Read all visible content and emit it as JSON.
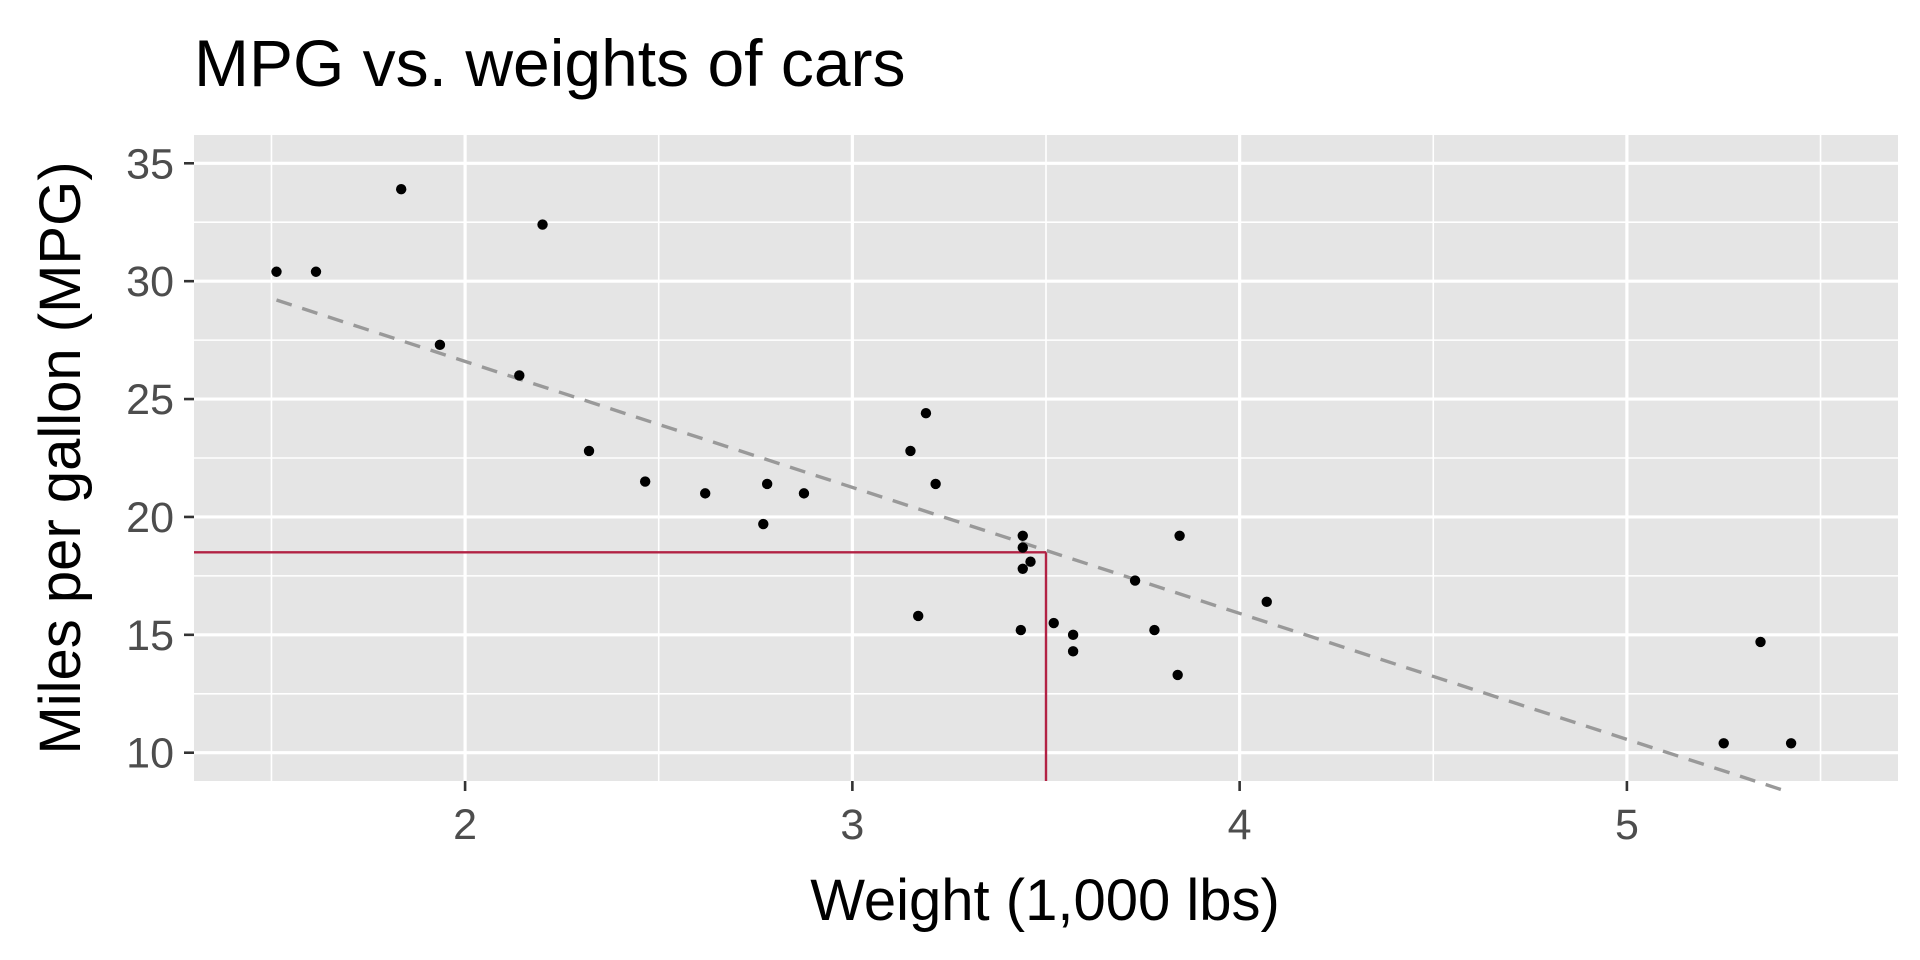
{
  "chart_data": {
    "type": "scatter",
    "title": "MPG vs. weights of cars",
    "xlabel": "Weight (1,000 lbs)",
    "ylabel": "Miles per gallon (MPG)",
    "xlim": [
      1.3,
      5.7
    ],
    "ylim": [
      8.8,
      36.2
    ],
    "x_ticks": [
      2,
      3,
      4,
      5
    ],
    "x_tick_labels": [
      "2",
      "3",
      "4",
      "5"
    ],
    "y_ticks": [
      10,
      15,
      20,
      25,
      30,
      35
    ],
    "y_tick_labels": [
      "10",
      "15",
      "20",
      "25",
      "30",
      "35"
    ],
    "grid": true,
    "background_color": "#e5e5e5",
    "points": [
      {
        "x": 2.62,
        "y": 21.0
      },
      {
        "x": 2.875,
        "y": 21.0
      },
      {
        "x": 2.32,
        "y": 22.8
      },
      {
        "x": 3.215,
        "y": 21.4
      },
      {
        "x": 3.44,
        "y": 18.7
      },
      {
        "x": 3.46,
        "y": 18.1
      },
      {
        "x": 3.57,
        "y": 14.3
      },
      {
        "x": 3.19,
        "y": 24.4
      },
      {
        "x": 3.15,
        "y": 22.8
      },
      {
        "x": 3.44,
        "y": 19.2
      },
      {
        "x": 3.44,
        "y": 17.8
      },
      {
        "x": 4.07,
        "y": 16.4
      },
      {
        "x": 3.73,
        "y": 17.3
      },
      {
        "x": 3.78,
        "y": 15.2
      },
      {
        "x": 5.25,
        "y": 10.4
      },
      {
        "x": 5.424,
        "y": 10.4
      },
      {
        "x": 5.345,
        "y": 14.7
      },
      {
        "x": 2.2,
        "y": 32.4
      },
      {
        "x": 1.615,
        "y": 30.4
      },
      {
        "x": 1.835,
        "y": 33.9
      },
      {
        "x": 2.465,
        "y": 21.5
      },
      {
        "x": 3.52,
        "y": 15.5
      },
      {
        "x": 3.435,
        "y": 15.2
      },
      {
        "x": 3.84,
        "y": 13.3
      },
      {
        "x": 3.845,
        "y": 19.2
      },
      {
        "x": 1.935,
        "y": 27.3
      },
      {
        "x": 2.14,
        "y": 26.0
      },
      {
        "x": 1.513,
        "y": 30.4
      },
      {
        "x": 3.17,
        "y": 15.8
      },
      {
        "x": 2.77,
        "y": 19.7
      },
      {
        "x": 3.57,
        "y": 15.0
      },
      {
        "x": 2.78,
        "y": 21.4
      }
    ],
    "point_color": "#000000",
    "trend_line": {
      "style": "dashed",
      "color": "#999999",
      "intercept": 37.285,
      "slope": -5.344,
      "x_range": [
        1.513,
        5.424
      ]
    },
    "reference_lines": {
      "color": "#b22244",
      "x": 3.5,
      "y": 18.5
    }
  }
}
